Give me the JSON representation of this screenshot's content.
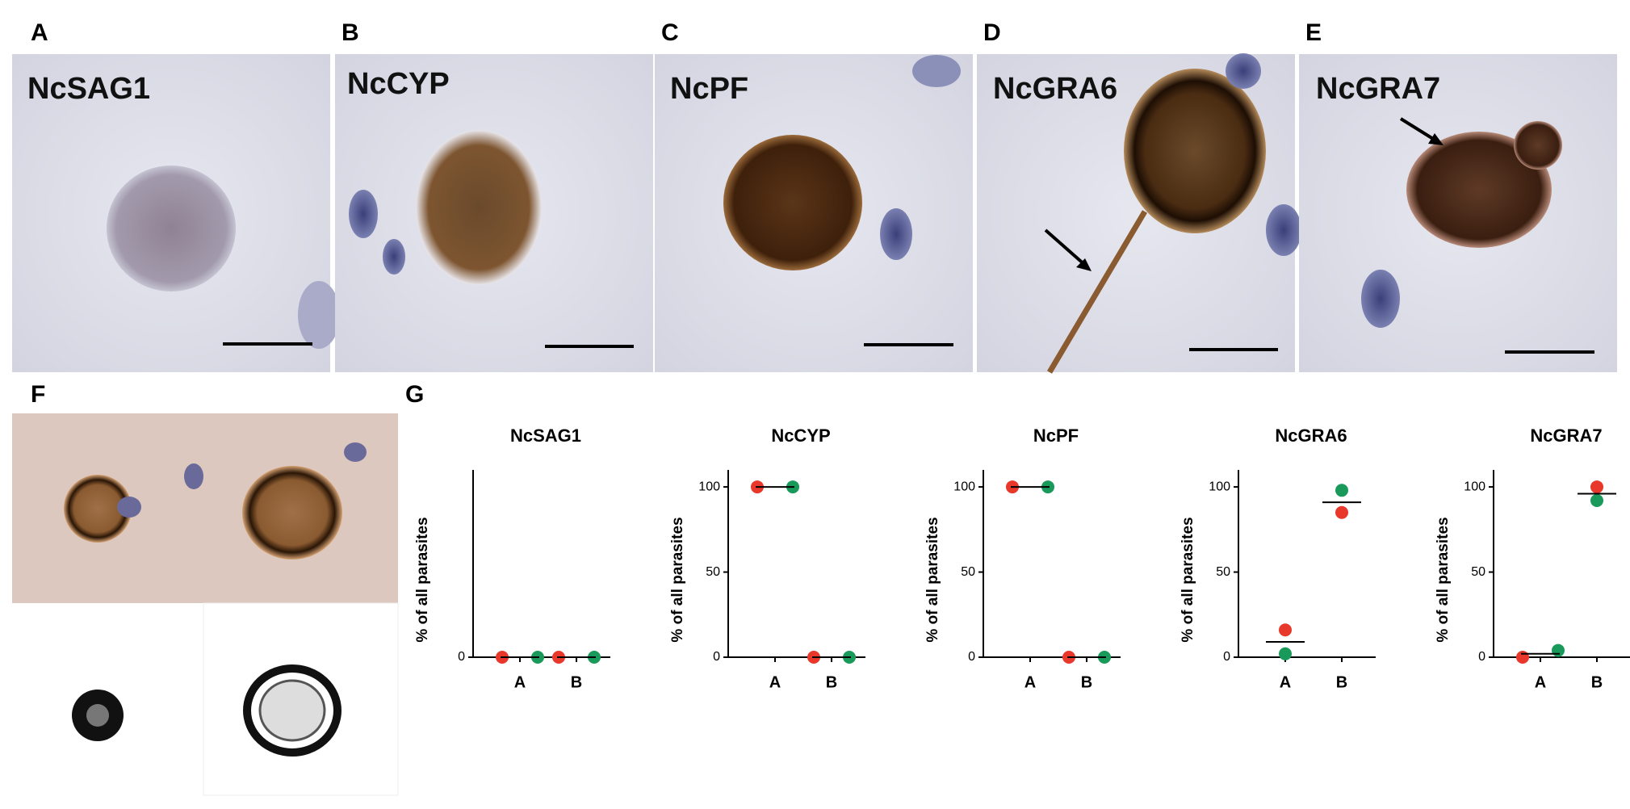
{
  "panels": [
    {
      "letter": "A",
      "label": "NcSAG1"
    },
    {
      "letter": "B",
      "label": "NcCYP"
    },
    {
      "letter": "C",
      "label": "NcPF"
    },
    {
      "letter": "D",
      "label": "NcGRA6"
    },
    {
      "letter": "E",
      "label": "NcGRA7"
    }
  ],
  "panel_f": {
    "letter": "F"
  },
  "panel_g": {
    "letter": "G"
  },
  "chart_data": [
    {
      "type": "scatter",
      "title": "NcSAG1",
      "y_label": "% of all parasites",
      "categories": [
        "A",
        "B"
      ],
      "series": [
        {
          "color": "#e8372b",
          "values": [
            0,
            0
          ]
        },
        {
          "color": "#1a9a5a",
          "values": [
            0,
            0
          ]
        },
        {
          "color": "#000000",
          "marker": "line",
          "values": [
            0,
            0
          ]
        }
      ],
      "ylim": [
        0,
        110
      ],
      "yticks": [
        0
      ]
    },
    {
      "type": "scatter",
      "title": "NcCYP",
      "y_label": "% of all parasites",
      "categories": [
        "A",
        "B"
      ],
      "series": [
        {
          "color": "#e8372b",
          "values": [
            100,
            0
          ]
        },
        {
          "color": "#1a9a5a",
          "values": [
            100,
            0
          ]
        },
        {
          "color": "#000000",
          "marker": "line",
          "values": [
            100,
            0
          ]
        }
      ],
      "ylim": [
        0,
        110
      ],
      "yticks": [
        0,
        50,
        100
      ]
    },
    {
      "type": "scatter",
      "title": "NcPF",
      "y_label": "% of all parasites",
      "categories": [
        "A",
        "B"
      ],
      "series": [
        {
          "color": "#e8372b",
          "values": [
            100,
            0
          ]
        },
        {
          "color": "#1a9a5a",
          "values": [
            100,
            0
          ]
        },
        {
          "color": "#000000",
          "marker": "line",
          "values": [
            100,
            0
          ]
        }
      ],
      "ylim": [
        0,
        110
      ],
      "yticks": [
        0,
        50,
        100
      ]
    },
    {
      "type": "scatter",
      "title": "NcGRA6",
      "y_label": "% of all parasites",
      "categories": [
        "A",
        "B"
      ],
      "series": [
        {
          "color": "#e8372b",
          "values": [
            16,
            85
          ]
        },
        {
          "color": "#1a9a5a",
          "values": [
            2,
            98
          ]
        },
        {
          "color": "#000000",
          "marker": "line",
          "values": [
            9,
            91
          ]
        }
      ],
      "ylim": [
        0,
        110
      ],
      "yticks": [
        0,
        50,
        100
      ]
    },
    {
      "type": "scatter",
      "title": "NcGRA7",
      "y_label": "% of all parasites",
      "categories": [
        "A",
        "B"
      ],
      "series": [
        {
          "color": "#e8372b",
          "values": [
            0,
            100
          ]
        },
        {
          "color": "#1a9a5a",
          "values": [
            4,
            92
          ]
        },
        {
          "color": "#000000",
          "marker": "line",
          "values": [
            2,
            96
          ]
        }
      ],
      "ylim": [
        0,
        110
      ],
      "yticks": [
        0,
        50,
        100
      ]
    }
  ]
}
